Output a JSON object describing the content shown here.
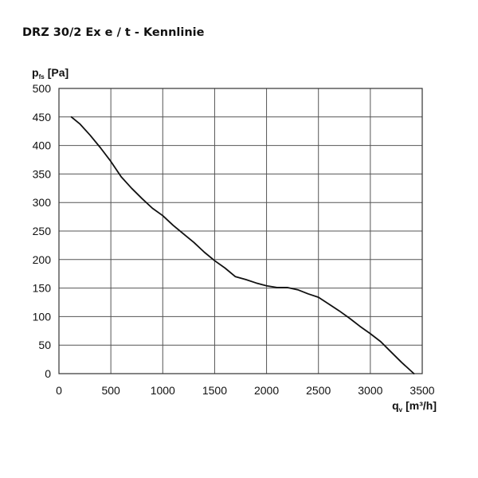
{
  "chart_data": {
    "type": "line",
    "title": "DRZ 30/2 Ex e / t - Kennlinie",
    "ylabel": {
      "symbol": "p",
      "sub": "fs",
      "unit": "[Pa]"
    },
    "xlabel": {
      "symbol": "q",
      "sub": "v",
      "unit": "[m³/h]"
    },
    "xlim": [
      0,
      3500
    ],
    "ylim": [
      0,
      500
    ],
    "x_ticks": [
      "0",
      "500",
      "1000",
      "1500",
      "2000",
      "2500",
      "3000",
      "3500"
    ],
    "y_ticks": [
      "0",
      "50",
      "100",
      "150",
      "200",
      "250",
      "300",
      "350",
      "400",
      "450",
      "500"
    ],
    "grid": true,
    "series": [
      {
        "color": "#111111",
        "points": [
          [
            120,
            450
          ],
          [
            200,
            438
          ],
          [
            300,
            418
          ],
          [
            400,
            396
          ],
          [
            500,
            372
          ],
          [
            600,
            345
          ],
          [
            700,
            325
          ],
          [
            800,
            307
          ],
          [
            900,
            290
          ],
          [
            1000,
            277
          ],
          [
            1100,
            260
          ],
          [
            1200,
            245
          ],
          [
            1300,
            230
          ],
          [
            1400,
            213
          ],
          [
            1500,
            198
          ],
          [
            1600,
            185
          ],
          [
            1700,
            170
          ],
          [
            1800,
            165
          ],
          [
            1900,
            159
          ],
          [
            2000,
            154
          ],
          [
            2100,
            151
          ],
          [
            2200,
            151
          ],
          [
            2300,
            147
          ],
          [
            2400,
            140
          ],
          [
            2500,
            134
          ],
          [
            2600,
            122
          ],
          [
            2700,
            110
          ],
          [
            2800,
            97
          ],
          [
            2900,
            83
          ],
          [
            3000,
            70
          ],
          [
            3100,
            56
          ],
          [
            3200,
            38
          ],
          [
            3300,
            20
          ],
          [
            3420,
            0
          ]
        ]
      }
    ]
  }
}
